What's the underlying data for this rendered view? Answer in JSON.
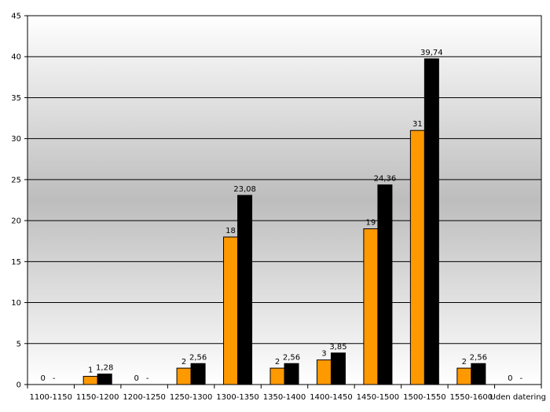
{
  "chart_data": {
    "type": "bar",
    "categories": [
      "1100-1150",
      "1150-1200",
      "1200-1250",
      "1250-1300",
      "1300-1350",
      "1350-1400",
      "1400-1450",
      "1450-1500",
      "1500-1550",
      "1550-1600",
      "Uden datering"
    ],
    "series": [
      {
        "values": [
          0,
          1,
          0,
          2,
          18,
          2,
          3,
          19,
          31,
          2,
          0
        ],
        "labels": [
          "0",
          "1",
          "0",
          "2",
          "18",
          "2",
          "3",
          "19",
          "31",
          "2",
          "0"
        ],
        "color": "#ff9900"
      },
      {
        "values": [
          0,
          1.28,
          0,
          2.56,
          23.08,
          2.56,
          3.85,
          24.36,
          39.74,
          2.56,
          0
        ],
        "labels": [
          "-",
          "1,28",
          "-",
          "2,56",
          "23,08",
          "2,56",
          "3,85",
          "24,36",
          "39,74",
          "2,56",
          "-"
        ],
        "color": "#000000"
      }
    ],
    "title": "",
    "xlabel": "",
    "ylabel": "",
    "ylim": [
      0,
      45
    ],
    "yticks": [
      "0",
      "5",
      "10",
      "15",
      "20",
      "25",
      "30",
      "35",
      "40",
      "45"
    ],
    "grid": true,
    "legend": "none"
  }
}
